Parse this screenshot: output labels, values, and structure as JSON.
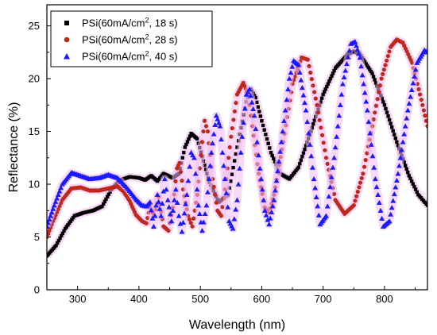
{
  "chart_data": {
    "type": "scatter",
    "xlabel": "Wavelength (nm)",
    "ylabel": "Reflectance (%)",
    "xlim": [
      250,
      870
    ],
    "ylim": [
      0,
      27
    ],
    "xticks": [
      300,
      400,
      500,
      600,
      700,
      800
    ],
    "yticks": [
      0,
      5,
      10,
      15,
      20,
      25
    ],
    "grid": false,
    "legend_position": "top-left",
    "series": [
      {
        "name_prefix": "PSi(60mA/cm",
        "name_sup": "2",
        "name_suffix": ", 18 s)",
        "marker": "square",
        "color": "#000000",
        "glow": "#f0b8ee",
        "points": [
          [
            250,
            3.2
          ],
          [
            265,
            4.2
          ],
          [
            280,
            5.8
          ],
          [
            295,
            7.0
          ],
          [
            310,
            7.3
          ],
          [
            325,
            7.5
          ],
          [
            340,
            7.9
          ],
          [
            355,
            9.5
          ],
          [
            370,
            10.4
          ],
          [
            385,
            10.7
          ],
          [
            400,
            10.6
          ],
          [
            410,
            10.4
          ],
          [
            420,
            10.8
          ],
          [
            430,
            10.3
          ],
          [
            440,
            11.0
          ],
          [
            455,
            10.6
          ],
          [
            465,
            11.0
          ],
          [
            475,
            13.5
          ],
          [
            485,
            14.8
          ],
          [
            495,
            14.3
          ],
          [
            505,
            12.2
          ],
          [
            515,
            10.2
          ],
          [
            530,
            8.3
          ],
          [
            545,
            9.0
          ],
          [
            560,
            13.5
          ],
          [
            575,
            17.8
          ],
          [
            582,
            19.0
          ],
          [
            590,
            18.2
          ],
          [
            600,
            16.0
          ],
          [
            615,
            13.0
          ],
          [
            630,
            11.0
          ],
          [
            645,
            10.5
          ],
          [
            660,
            11.6
          ],
          [
            680,
            15.0
          ],
          [
            700,
            18.5
          ],
          [
            720,
            21.0
          ],
          [
            740,
            22.3
          ],
          [
            750,
            22.6
          ],
          [
            760,
            22.3
          ],
          [
            780,
            20.5
          ],
          [
            800,
            17.5
          ],
          [
            820,
            14.0
          ],
          [
            840,
            10.8
          ],
          [
            855,
            9.0
          ],
          [
            870,
            8.0
          ]
        ]
      },
      {
        "name_prefix": "PSi(60mA/cm",
        "name_sup": "2",
        "name_suffix": ", 28 s)",
        "marker": "circle",
        "color": "#c0281c",
        "glow": "#f0b8ee",
        "points": [
          [
            250,
            5.0
          ],
          [
            260,
            6.5
          ],
          [
            275,
            8.5
          ],
          [
            290,
            9.6
          ],
          [
            305,
            9.7
          ],
          [
            320,
            9.4
          ],
          [
            335,
            9.4
          ],
          [
            350,
            9.6
          ],
          [
            365,
            9.8
          ],
          [
            375,
            9.3
          ],
          [
            385,
            8.4
          ],
          [
            395,
            7.1
          ],
          [
            405,
            6.5
          ],
          [
            412,
            6.3
          ],
          [
            418,
            7.8
          ],
          [
            425,
            7.0
          ],
          [
            432,
            8.8
          ],
          [
            440,
            6.0
          ],
          [
            448,
            5.6
          ],
          [
            455,
            7.8
          ],
          [
            462,
            11.5
          ],
          [
            466,
            12.0
          ],
          [
            472,
            9.5
          ],
          [
            480,
            7.0
          ],
          [
            487,
            6.0
          ],
          [
            495,
            9.0
          ],
          [
            503,
            14.0
          ],
          [
            507,
            16.0
          ],
          [
            512,
            15.0
          ],
          [
            520,
            10.5
          ],
          [
            528,
            7.5
          ],
          [
            534,
            7.0
          ],
          [
            540,
            9.5
          ],
          [
            550,
            14.5
          ],
          [
            560,
            18.5
          ],
          [
            570,
            19.6
          ],
          [
            578,
            18.5
          ],
          [
            585,
            15.5
          ],
          [
            595,
            11.0
          ],
          [
            605,
            7.8
          ],
          [
            612,
            7.3
          ],
          [
            620,
            9.0
          ],
          [
            635,
            14.0
          ],
          [
            650,
            19.5
          ],
          [
            665,
            22.0
          ],
          [
            675,
            21.8
          ],
          [
            690,
            17.5
          ],
          [
            705,
            12.5
          ],
          [
            720,
            8.5
          ],
          [
            735,
            7.2
          ],
          [
            750,
            8.0
          ],
          [
            765,
            11.0
          ],
          [
            780,
            15.5
          ],
          [
            795,
            20.0
          ],
          [
            810,
            23.0
          ],
          [
            820,
            23.7
          ],
          [
            830,
            23.4
          ],
          [
            845,
            21.5
          ],
          [
            860,
            18.0
          ],
          [
            870,
            15.5
          ]
        ]
      },
      {
        "name_prefix": "PSi(60mA/cm",
        "name_sup": "2",
        "name_suffix": ", 40 s)",
        "marker": "triangle",
        "color": "#1a1aff",
        "glow": "#f0b8ee",
        "points": [
          [
            250,
            6.0
          ],
          [
            262,
            8.0
          ],
          [
            275,
            10.0
          ],
          [
            290,
            11.1
          ],
          [
            305,
            10.8
          ],
          [
            320,
            10.5
          ],
          [
            335,
            10.6
          ],
          [
            350,
            10.9
          ],
          [
            365,
            10.6
          ],
          [
            380,
            9.7
          ],
          [
            395,
            8.6
          ],
          [
            405,
            8.0
          ],
          [
            412,
            7.9
          ],
          [
            418,
            8.3
          ],
          [
            424,
            6.0
          ],
          [
            430,
            9.0
          ],
          [
            436,
            7.0
          ],
          [
            442,
            10.5
          ],
          [
            447,
            8.5
          ],
          [
            453,
            6.5
          ],
          [
            460,
            9.5
          ],
          [
            465,
            7.0
          ],
          [
            470,
            5.5
          ],
          [
            478,
            9.0
          ],
          [
            485,
            13.0
          ],
          [
            490,
            12.5
          ],
          [
            497,
            8.0
          ],
          [
            503,
            5.6
          ],
          [
            510,
            8.0
          ],
          [
            518,
            13.0
          ],
          [
            526,
            16.5
          ],
          [
            532,
            15.5
          ],
          [
            540,
            10.5
          ],
          [
            547,
            6.5
          ],
          [
            553,
            5.8
          ],
          [
            560,
            8.5
          ],
          [
            568,
            14.5
          ],
          [
            575,
            18.5
          ],
          [
            580,
            19.0
          ],
          [
            588,
            16.5
          ],
          [
            597,
            11.5
          ],
          [
            605,
            7.5
          ],
          [
            612,
            6.2
          ],
          [
            620,
            8.5
          ],
          [
            632,
            14.0
          ],
          [
            645,
            20.0
          ],
          [
            652,
            21.7
          ],
          [
            660,
            21.3
          ],
          [
            672,
            17.0
          ],
          [
            685,
            10.5
          ],
          [
            695,
            6.2
          ],
          [
            705,
            7.0
          ],
          [
            718,
            12.5
          ],
          [
            732,
            19.5
          ],
          [
            745,
            23.3
          ],
          [
            752,
            23.5
          ],
          [
            760,
            22.0
          ],
          [
            772,
            17.0
          ],
          [
            785,
            10.5
          ],
          [
            798,
            6.0
          ],
          [
            808,
            6.5
          ],
          [
            822,
            11.0
          ],
          [
            838,
            17.0
          ],
          [
            853,
            21.5
          ],
          [
            865,
            22.7
          ],
          [
            870,
            22.5
          ]
        ]
      }
    ]
  }
}
